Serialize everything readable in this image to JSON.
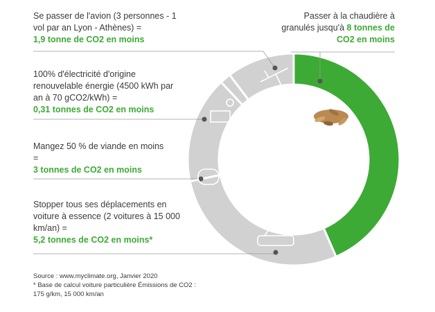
{
  "chart_data": {
    "type": "donut",
    "categories": [
      "Passer à la chaudière à granulés jusqu'à",
      "Stopper tous ses déplacements en voiture à essence (2 voitures à 15 000 km/an) =",
      "Mangez 50 % de viande en moins =",
      "100% d'électricité d'origine renouvelable énergie (4500 kWh par an à 70 gCO2/kWh) =",
      "Se passer de l'avion (3 personnes - 1 vol par an Lyon - Athènes) ="
    ],
    "values": [
      8,
      5.2,
      3,
      0.31,
      1.9
    ],
    "value_labels": [
      "8 tonnes de CO2 en moins",
      "5,2 tonnes de CO2 en moins*",
      "3 tonnes de CO2 en moins",
      "0,31 tonnes de CO2 en moins",
      "1,9 tonne de CO2 en moins"
    ],
    "colors": [
      "#3daa35",
      "#d1d1d1",
      "#d1d1d1",
      "#d1d1d1",
      "#d1d1d1"
    ]
  },
  "source": "Source : www.myclimate.org, Janvier 2020",
  "footnote": "* Base de calcul voiture particulière Émissions de CO2 : 175 g/km, 15 000 km/an"
}
